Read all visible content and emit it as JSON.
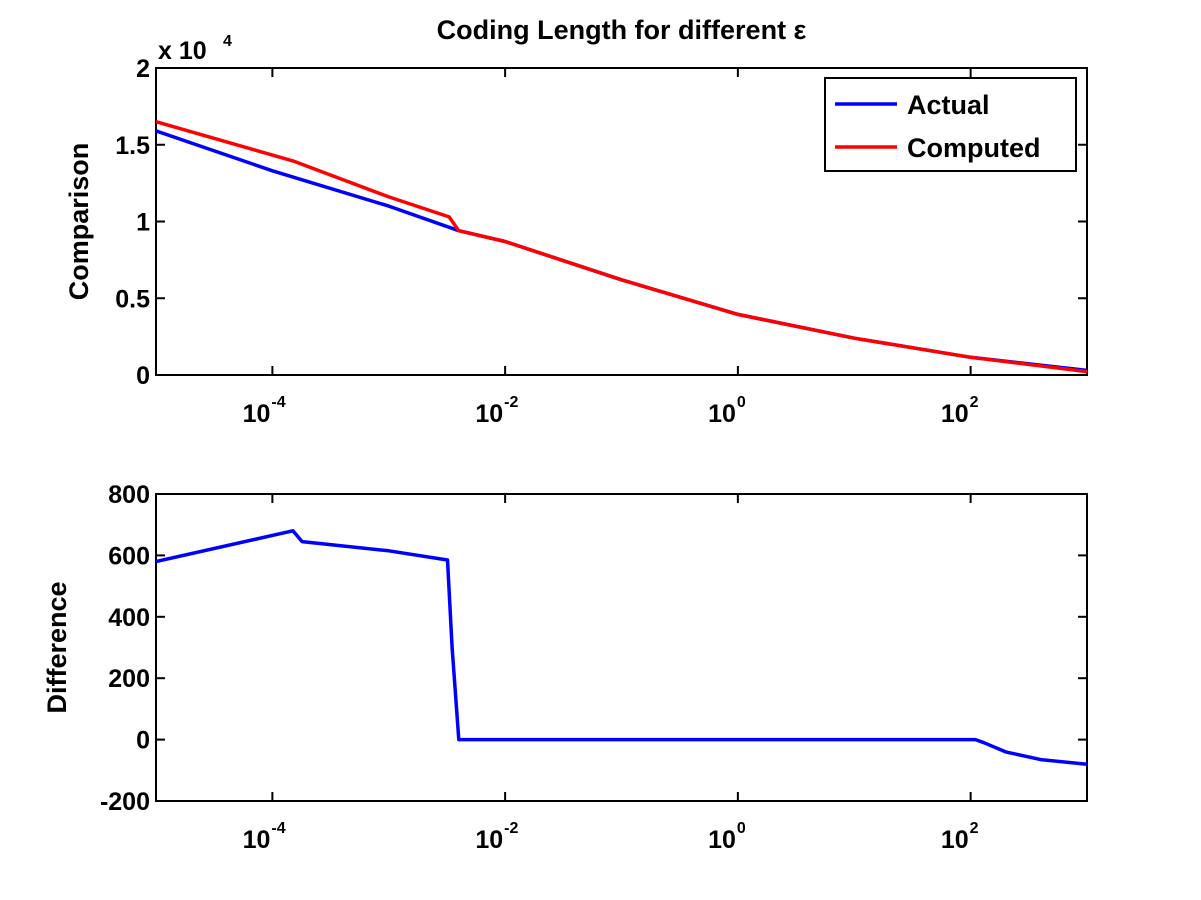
{
  "chart_data": [
    {
      "type": "line",
      "title": "Coding Length for different ε",
      "xlabel": "",
      "ylabel": "Comparison",
      "xscale": "log",
      "xlim": [
        1e-05,
        1000
      ],
      "ylim": [
        0,
        20000
      ],
      "y_multiplier_label": {
        "prefix": "x 10",
        "exponent": "4"
      },
      "xticks": [
        {
          "value": 0.0001,
          "base": "10",
          "exp": "-4"
        },
        {
          "value": 0.01,
          "base": "10",
          "exp": "-2"
        },
        {
          "value": 1,
          "base": "10",
          "exp": "0"
        },
        {
          "value": 100,
          "base": "10",
          "exp": "2"
        }
      ],
      "yticks": [
        {
          "value": 0,
          "label": "0"
        },
        {
          "value": 5000,
          "label": "0.5"
        },
        {
          "value": 10000,
          "label": "1"
        },
        {
          "value": 15000,
          "label": "1.5"
        },
        {
          "value": 20000,
          "label": "2"
        }
      ],
      "legend": {
        "position": "top-right"
      },
      "series": [
        {
          "name": "Actual",
          "color": "#0000ff",
          "x": [
            1e-05,
            0.0001,
            0.001,
            0.004,
            0.01,
            0.1,
            1,
            10,
            100,
            1000
          ],
          "y": [
            15900,
            13300,
            11000,
            9400,
            8700,
            6200,
            3950,
            2400,
            1150,
            300
          ]
        },
        {
          "name": "Computed",
          "color": "#ff0000",
          "x": [
            1e-05,
            0.00015,
            0.001,
            0.0033,
            0.004,
            0.01,
            0.1,
            1,
            10,
            100,
            1000
          ],
          "y": [
            16500,
            13950,
            11600,
            10300,
            9400,
            8700,
            6200,
            3950,
            2400,
            1150,
            220
          ]
        }
      ],
      "grid": false
    },
    {
      "type": "line",
      "title": "",
      "xlabel": "",
      "ylabel": "Difference",
      "xscale": "log",
      "xlim": [
        1e-05,
        1000
      ],
      "ylim": [
        -200,
        800
      ],
      "xticks": [
        {
          "value": 0.0001,
          "base": "10",
          "exp": "-4"
        },
        {
          "value": 0.01,
          "base": "10",
          "exp": "-2"
        },
        {
          "value": 1,
          "base": "10",
          "exp": "0"
        },
        {
          "value": 100,
          "base": "10",
          "exp": "2"
        }
      ],
      "yticks": [
        {
          "value": -200,
          "label": "-200"
        },
        {
          "value": 0,
          "label": "0"
        },
        {
          "value": 200,
          "label": "200"
        },
        {
          "value": 400,
          "label": "400"
        },
        {
          "value": 600,
          "label": "600"
        },
        {
          "value": 800,
          "label": "800"
        }
      ],
      "series": [
        {
          "color": "#0000ff",
          "x": [
            1e-05,
            0.00015,
            0.00018,
            0.001,
            0.0032,
            0.0035,
            0.004,
            0.01,
            1,
            110,
            130,
            200,
            400,
            1000
          ],
          "y": [
            580,
            680,
            645,
            615,
            585,
            300,
            0,
            0,
            0,
            0,
            -10,
            -40,
            -65,
            -80
          ]
        }
      ],
      "grid": false
    }
  ]
}
